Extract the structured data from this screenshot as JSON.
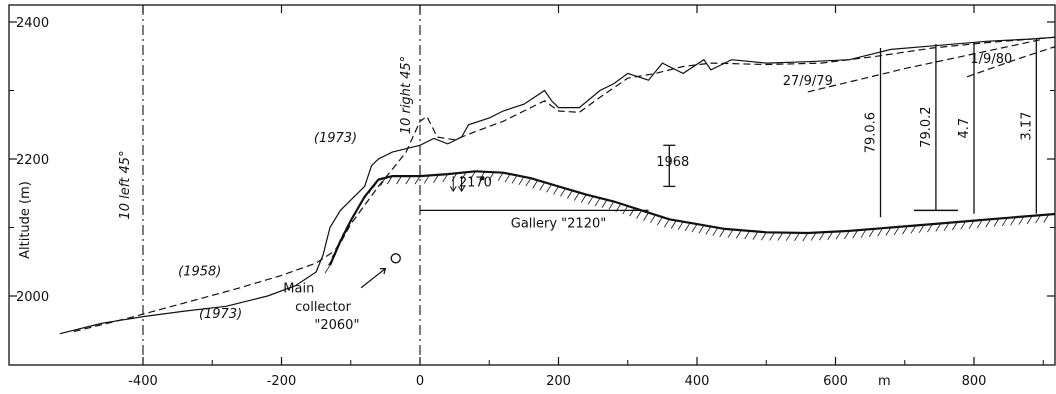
{
  "chart_data": {
    "type": "line",
    "title": "",
    "xlabel": "",
    "x_unit": "m",
    "ylabel": "Altitude (m)",
    "xlim": [
      -520,
      920
    ],
    "ylim": [
      1930,
      2430
    ],
    "xticks": [
      "-400",
      "-200",
      "0",
      "200",
      "400",
      "600",
      "800"
    ],
    "yticks": [
      "2000",
      "2200",
      "2400"
    ],
    "grid": false,
    "series": [
      {
        "style": "solid",
        "role": "glacier surface 1973",
        "points": [
          [
            -520,
            1945
          ],
          [
            -460,
            1960
          ],
          [
            -400,
            1970
          ],
          [
            -340,
            1978
          ],
          [
            -280,
            1985
          ],
          [
            -220,
            2000
          ],
          [
            -180,
            2015
          ],
          [
            -150,
            2035
          ],
          [
            -140,
            2060
          ],
          [
            -135,
            2080
          ],
          [
            -130,
            2100
          ],
          [
            -115,
            2125
          ],
          [
            -100,
            2140
          ],
          [
            -80,
            2160
          ],
          [
            -70,
            2190
          ],
          [
            -60,
            2200
          ],
          [
            -40,
            2210
          ],
          [
            -20,
            2215
          ],
          [
            0,
            2220
          ],
          [
            20,
            2230
          ],
          [
            40,
            2222
          ],
          [
            60,
            2232
          ],
          [
            70,
            2250
          ],
          [
            100,
            2260
          ],
          [
            120,
            2270
          ],
          [
            150,
            2280
          ],
          [
            180,
            2300
          ],
          [
            190,
            2285
          ],
          [
            200,
            2275
          ],
          [
            230,
            2275
          ],
          [
            260,
            2300
          ],
          [
            280,
            2310
          ],
          [
            300,
            2325
          ],
          [
            330,
            2315
          ],
          [
            350,
            2340
          ],
          [
            380,
            2325
          ],
          [
            410,
            2345
          ],
          [
            420,
            2330
          ],
          [
            450,
            2345
          ],
          [
            500,
            2340
          ],
          [
            560,
            2342
          ],
          [
            620,
            2345
          ],
          [
            680,
            2360
          ],
          [
            750,
            2366
          ],
          [
            820,
            2372
          ],
          [
            880,
            2375
          ],
          [
            920,
            2378
          ]
        ]
      },
      {
        "style": "dashed",
        "role": "glacier surface 1958",
        "points": [
          [
            -500,
            1948
          ],
          [
            -420,
            1968
          ],
          [
            -340,
            1990
          ],
          [
            -260,
            2012
          ],
          [
            -200,
            2030
          ],
          [
            -150,
            2048
          ],
          [
            -120,
            2068
          ],
          [
            -100,
            2105
          ],
          [
            -60,
            2160
          ],
          [
            -40,
            2185
          ],
          [
            -20,
            2210
          ],
          [
            0,
            2255
          ],
          [
            10,
            2262
          ],
          [
            25,
            2232
          ],
          [
            50,
            2228
          ],
          [
            80,
            2240
          ],
          [
            120,
            2255
          ],
          [
            150,
            2270
          ],
          [
            180,
            2285
          ],
          [
            200,
            2270
          ],
          [
            230,
            2268
          ],
          [
            260,
            2290
          ],
          [
            300,
            2318
          ],
          [
            340,
            2325
          ],
          [
            380,
            2335
          ],
          [
            420,
            2340
          ],
          [
            500,
            2338
          ],
          [
            580,
            2340
          ],
          [
            660,
            2350
          ],
          [
            740,
            2362
          ],
          [
            820,
            2370
          ],
          [
            920,
            2378
          ]
        ]
      },
      {
        "style": "solid",
        "role": "glacier bed (hatched)",
        "points": [
          [
            -130,
            2045
          ],
          [
            -115,
            2080
          ],
          [
            -100,
            2110
          ],
          [
            -80,
            2145
          ],
          [
            -60,
            2170
          ],
          [
            -40,
            2175
          ],
          [
            0,
            2175
          ],
          [
            40,
            2178
          ],
          [
            80,
            2182
          ],
          [
            120,
            2180
          ],
          [
            160,
            2172
          ],
          [
            200,
            2160
          ],
          [
            240,
            2148
          ],
          [
            280,
            2138
          ],
          [
            320,
            2125
          ],
          [
            360,
            2112
          ],
          [
            400,
            2105
          ],
          [
            440,
            2098
          ],
          [
            500,
            2093
          ],
          [
            560,
            2092
          ],
          [
            620,
            2095
          ],
          [
            680,
            2100
          ],
          [
            740,
            2105
          ],
          [
            800,
            2110
          ],
          [
            860,
            2115
          ],
          [
            920,
            2120
          ]
        ]
      },
      {
        "style": "dashed",
        "role": "27/9/79",
        "points": [
          [
            560,
            2298
          ],
          [
            700,
            2332
          ],
          [
            900,
            2375
          ]
        ]
      },
      {
        "style": "dashed",
        "role": "1/9/80",
        "points": [
          [
            790,
            2320
          ],
          [
            860,
            2345
          ],
          [
            920,
            2365
          ]
        ]
      },
      {
        "style": "solid",
        "role": "Gallery \"2120\"",
        "points": [
          [
            0,
            2125
          ],
          [
            330,
            2125
          ]
        ]
      }
    ],
    "vertical_lines": [
      {
        "x": -400,
        "label": "10 left 45°"
      },
      {
        "x": 0,
        "label": "10 right 45°"
      }
    ],
    "boreholes": [
      {
        "x": 665,
        "label": "79.0.6",
        "top": 2362,
        "bottom": 2115
      },
      {
        "x": 745,
        "label": "79.0.2̄",
        "top": 2368,
        "bottom": 2125
      },
      {
        "x": 800,
        "label": "4̄.7̄",
        "top": 2370,
        "bottom": 2120
      },
      {
        "x": 890,
        "label": "3̄.1̄7̄",
        "top": 2376,
        "bottom": 2120
      }
    ],
    "annotations": [
      {
        "text": "(1973)",
        "x": -122,
        "y": 2225
      },
      {
        "text": "(1958)",
        "x": -318,
        "y": 2030
      },
      {
        "text": "(1973)",
        "x": -288,
        "y": 1968
      },
      {
        "text": "1968",
        "x": 365,
        "y": 2190
      },
      {
        "text": "2170",
        "x": 80,
        "y": 2160
      },
      {
        "text": "27/9/79",
        "x": 560,
        "y": 2308
      },
      {
        "text": "1/9/80",
        "x": 825,
        "y": 2340
      },
      {
        "text": "Gallery \"2120\"",
        "x": 200,
        "y": 2100
      },
      {
        "text": "Main",
        "x": -175,
        "y": 2005
      },
      {
        "text": "collector",
        "x": -140,
        "y": 1978
      },
      {
        "text": "\"2060\"",
        "x": -120,
        "y": 1952
      }
    ],
    "collector_point": [
      -35,
      2055
    ],
    "altitude_marker_1968": [
      360,
      2220,
      2160
    ]
  }
}
